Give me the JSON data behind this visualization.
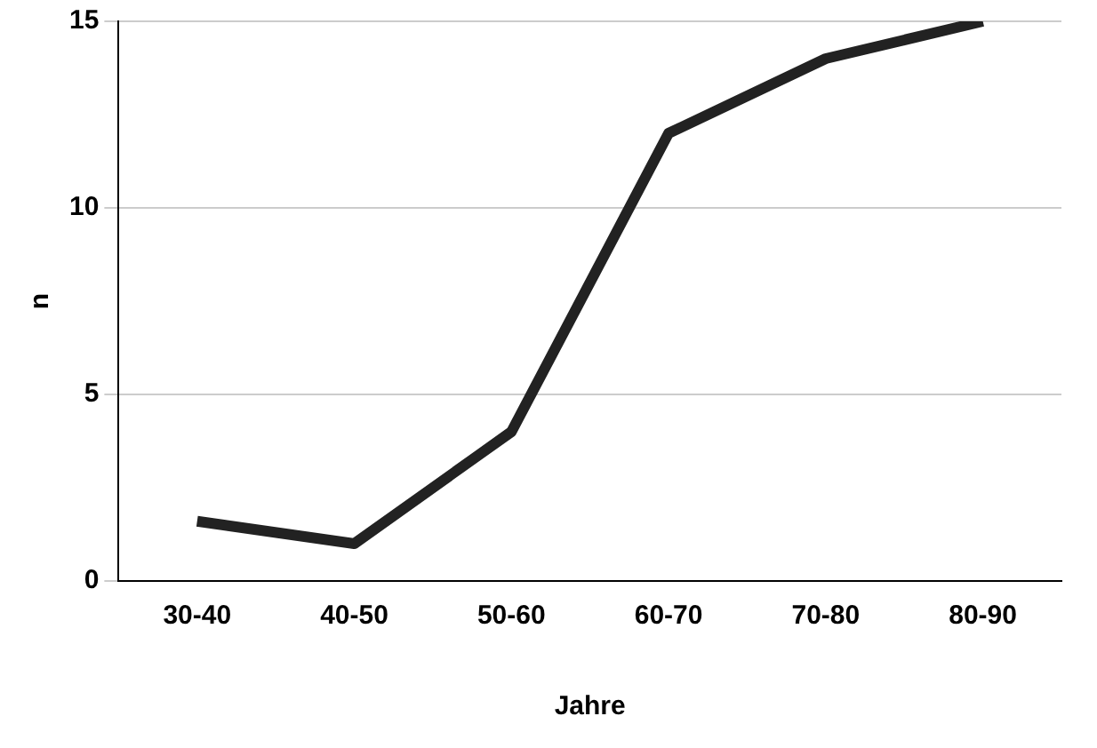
{
  "chart_data": {
    "type": "line",
    "xlabel": "Jahre",
    "ylabel": "n",
    "categories": [
      "30-40",
      "40-50",
      "50-60",
      "60-70",
      "70-80",
      "80-90"
    ],
    "series": [
      {
        "color": "#222222",
        "values": [
          1.6,
          1,
          4,
          12,
          14,
          15
        ]
      }
    ],
    "ylim": [
      0,
      15
    ],
    "yticks": [
      0,
      5,
      10,
      15
    ],
    "grid": "y",
    "legend": false,
    "marker": "none"
  }
}
